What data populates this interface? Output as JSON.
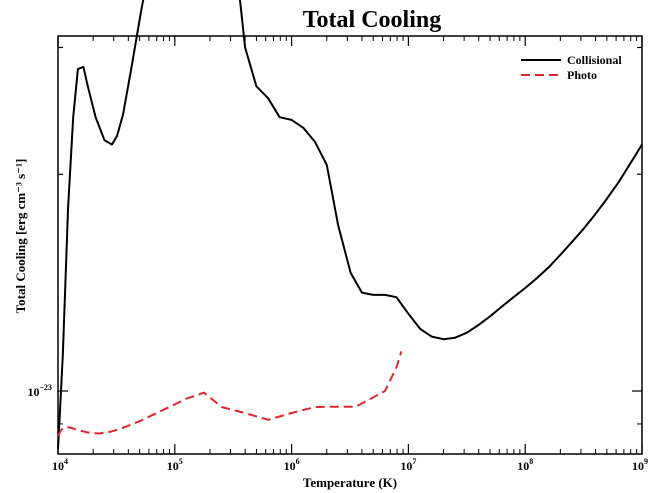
{
  "chart_data": {
    "type": "line",
    "title": "Total Cooling",
    "xlabel": "Temperature (K)",
    "ylabel": "Total Cooling [erg cm⁻³ s⁻¹]",
    "x_scale": "log",
    "y_scale": "log",
    "xlim": [
      10000,
      1000000000
    ],
    "x_ticks": [
      {
        "value": 10000,
        "base": "10",
        "exp": "4"
      },
      {
        "value": 100000,
        "base": "10",
        "exp": "5"
      },
      {
        "value": 1000000,
        "base": "10",
        "exp": "6"
      },
      {
        "value": 10000000,
        "base": "10",
        "exp": "7"
      },
      {
        "value": 100000000,
        "base": "10",
        "exp": "8"
      },
      {
        "value": 1000000000,
        "base": "10",
        "exp": "9"
      }
    ],
    "y_labeled_tick": {
      "base": "10",
      "exp": "−23"
    },
    "legend_position": "top-right",
    "grid": false,
    "series": [
      {
        "name": "Collisional",
        "color": "#000000",
        "dash": "solid",
        "x": [
          10000,
          11000,
          12200,
          13500,
          14800,
          16500,
          18000,
          21000,
          25000,
          29000,
          32000,
          36000,
          42000,
          52000,
          65000,
          78000,
          92000,
          100000,
          112000,
          132000,
          160000,
          200000,
          240000,
          280000,
          330000,
          400000,
          500000,
          630000,
          790000,
          1000000,
          1260000,
          1580000,
          2000000,
          2500000,
          3200000,
          4000000,
          5000000,
          6300000,
          7900000,
          10000000,
          12600000,
          15800000,
          20000000,
          25100000,
          31600000,
          39800000,
          50100000,
          63100000,
          79400000,
          100000000,
          125900000,
          158500000,
          199500000,
          251200000,
          316200000,
          398100000,
          501200000,
          631000000,
          794300000,
          1000000000
        ],
        "y": [
          8.3e-24,
          1.12e-23,
          1.8e-23,
          2.4e-23,
          2.8e-23,
          2.82e-23,
          2.65e-23,
          2.4e-23,
          2.23e-23,
          2.2e-23,
          2.26e-23,
          2.42e-23,
          2.78e-23,
          3.4e-23,
          4.1e-23,
          4.6e-23,
          4.85e-23,
          4.9e-23,
          4.78e-23,
          4.6e-23,
          4.6e-23,
          4.72e-23,
          4.75e-23,
          4.7e-23,
          4e-23,
          3e-23,
          2.65e-23,
          2.55e-23,
          2.4e-23,
          2.38e-23,
          2.32e-23,
          2.22e-23,
          2.06e-23,
          1.7e-23,
          1.46e-23,
          1.37e-23,
          1.36e-23,
          1.36e-23,
          1.35e-23,
          1.28e-23,
          1.22e-23,
          1.19e-23,
          1.18e-23,
          1.186e-23,
          1.205e-23,
          1.235e-23,
          1.27e-23,
          1.31e-23,
          1.35e-23,
          1.39e-23,
          1.435e-23,
          1.485e-23,
          1.545e-23,
          1.61e-23,
          1.68e-23,
          1.76e-23,
          1.85e-23,
          1.95e-23,
          2.07e-23,
          2.2e-23
        ]
      },
      {
        "name": "Photo",
        "color": "#e0262b",
        "dash": "dashed",
        "x": [
          10000,
          10500,
          11200,
          12600,
          14100,
          17800,
          22400,
          28200,
          35500,
          50100,
          70800,
          100000,
          125900,
          158500,
          178000,
          251200,
          398100,
          631000,
          1000000,
          1585000,
          2512000,
          3548000,
          4467000,
          6310000,
          7943000,
          8700000
        ],
        "y": [
          8.66e-24,
          8.8e-24,
          8.9e-24,
          8.9e-24,
          8.85e-24,
          8.76e-24,
          8.73e-24,
          8.78e-24,
          8.88e-24,
          9.08e-24,
          9.33e-24,
          9.58e-24,
          9.76e-24,
          9.88e-24,
          9.95e-24,
          9.5e-24,
          9.32e-24,
          9.12e-24,
          9.32e-24,
          9.5e-24,
          9.51e-24,
          9.51e-24,
          9.7e-24,
          1e-23,
          1.08e-23,
          1.135e-23
        ]
      }
    ]
  }
}
